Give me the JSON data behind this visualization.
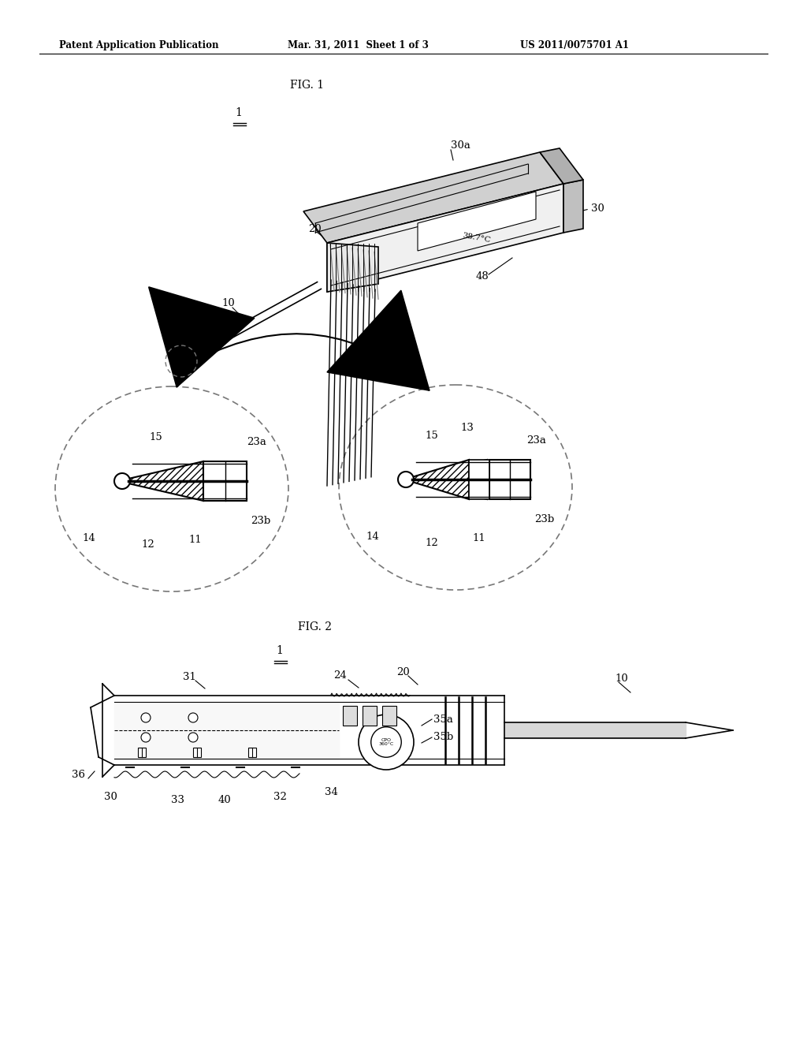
{
  "background_color": "#ffffff",
  "header_left": "Patent Application Publication",
  "header_mid": "Mar. 31, 2011  Sheet 1 of 3",
  "header_right": "US 2011/0075701 A1",
  "fig1_label": "FIG. 1",
  "fig2_label": "FIG. 2",
  "line_color": "#000000",
  "gray_light": "#e8e8e8",
  "gray_mid": "#cccccc",
  "gray_dark": "#aaaaaa",
  "dash_color": "#666666"
}
